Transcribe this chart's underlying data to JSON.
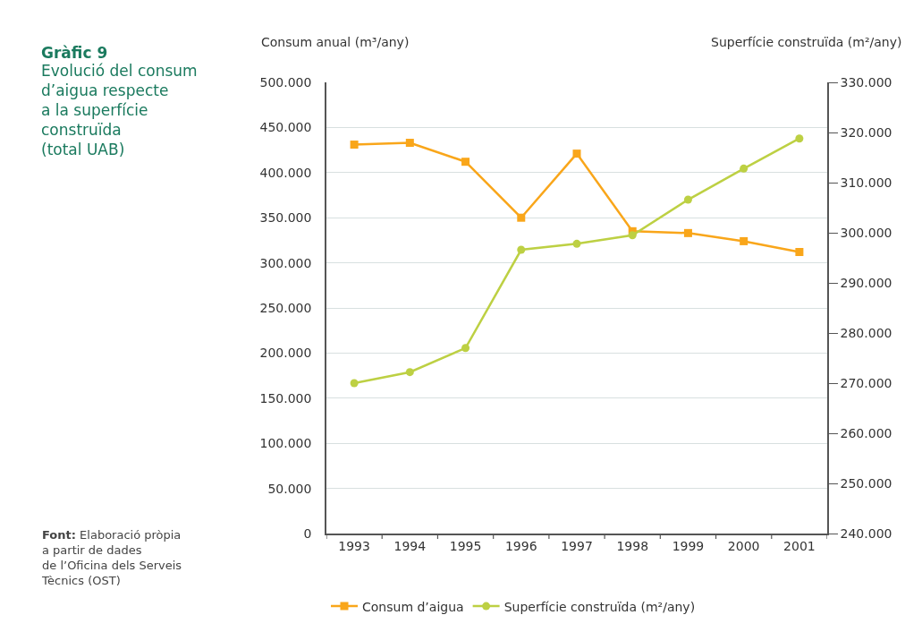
{
  "chart_data": {
    "type": "line",
    "title": "Gràfic 9",
    "subtitle": "Evolució del consum\nd’aigua respecte\na la superfície\nconstruïda\n(total UAB)",
    "ylabel": "Consum anual (m³/any)",
    "y2label": "Superfície construïda (m²/any)",
    "annotations": [
      "Font: Elaboració pròpia\na partir de dades\nde l’Oficina dels Serveis\nTècnics (OST)"
    ],
    "categories": [
      "1993",
      "1994",
      "1995",
      "1996",
      "1997",
      "1998",
      "1999",
      "2000",
      "2001"
    ],
    "series": [
      {
        "name": "Consum d’aigua",
        "color": "#f9a61a",
        "marker": "square",
        "values": [
          431000,
          433000,
          412000,
          350000,
          421000,
          335000,
          333000,
          324000,
          312000
        ]
      },
      {
        "name": "Superfície construïda (m²/any)",
        "color": "#bdd043",
        "marker": "circle",
        "axis": "y2",
        "values": [
          270000,
          272200,
          277000,
          296600,
          297800,
          299500,
          306600,
          312800,
          318800
        ]
      }
    ],
    "ylim": [
      0,
      500000
    ],
    "yticks": [
      {
        "value": 0,
        "label": "0"
      },
      {
        "value": 50000,
        "label": "50.000"
      },
      {
        "value": 100000,
        "label": "100.000"
      },
      {
        "value": 150000,
        "label": "150.000"
      },
      {
        "value": 200000,
        "label": "200.000"
      },
      {
        "value": 250000,
        "label": "250.000"
      },
      {
        "value": 300000,
        "label": "300.000"
      },
      {
        "value": 350000,
        "label": "350.000"
      },
      {
        "value": 400000,
        "label": "400.000"
      },
      {
        "value": 450000,
        "label": "450.000"
      },
      {
        "value": 500000,
        "label": "500.000"
      }
    ],
    "y2lim": [
      240000,
      330000
    ],
    "y2ticks": [
      {
        "value": 240000,
        "label": "240.000"
      },
      {
        "value": 250000,
        "label": "250.000"
      },
      {
        "value": 260000,
        "label": "260.000"
      },
      {
        "value": 270000,
        "label": "270.000"
      },
      {
        "value": 280000,
        "label": "280.000"
      },
      {
        "value": 290000,
        "label": "290.000"
      },
      {
        "value": 300000,
        "label": "300.000"
      },
      {
        "value": 310000,
        "label": "310.000"
      },
      {
        "value": 320000,
        "label": "320.000"
      },
      {
        "value": 330000,
        "label": "330.000"
      }
    ],
    "grid": "y",
    "legend": "bottom",
    "line_style": "solid"
  }
}
